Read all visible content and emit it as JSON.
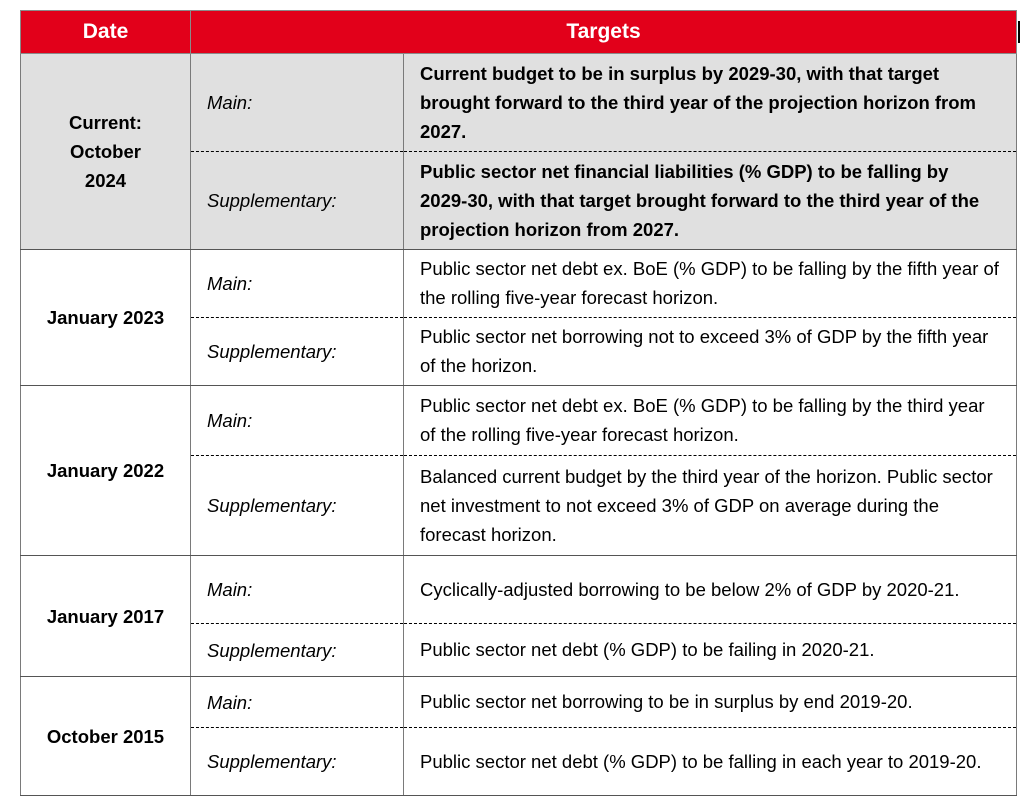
{
  "header": {
    "date": "Date",
    "targets": "Targets"
  },
  "rows": [
    {
      "date": "Current: October 2024",
      "main_label": "Main:",
      "main_text": "Current budget to be in surplus by 2029-30, with that target brought forward to the third year of the projection horizon from 2027.",
      "supp_label": "Supplementary:",
      "supp_text": "Public sector net financial liabilities (% GDP) to be falling by 2029-30, with that target brought forward to the third year of the projection horizon from 2027."
    },
    {
      "date": "January 2023",
      "main_label": "Main:",
      "main_text": "Public sector net debt ex. BoE (% GDP) to be falling by the fifth year of the rolling five-year forecast horizon.",
      "supp_label": "Supplementary:",
      "supp_text": "Public sector net borrowing not to exceed 3% of GDP by the fifth year of the horizon."
    },
    {
      "date": "January 2022",
      "main_label": "Main:",
      "main_text": "Public sector net debt ex. BoE (% GDP) to be falling by the third year of the rolling five-year forecast horizon.",
      "supp_label": "Supplementary:",
      "supp_text": "Balanced current budget by the third year of the horizon. Public sector net investment to not exceed 3% of GDP on average during the forecast horizon."
    },
    {
      "date": "January 2017",
      "main_label": "Main:",
      "main_text": "Cyclically-adjusted borrowing to be below 2% of GDP by 2020-21.",
      "supp_label": "Supplementary:",
      "supp_text": "Public sector net debt (% GDP) to be failing in 2020-21."
    },
    {
      "date": "October 2015",
      "main_label": "Main:",
      "main_text": "Public sector net borrowing to be in surplus by end 2019-20.",
      "supp_label": "Supplementary:",
      "supp_text": "Public sector net debt (% GDP) to be falling in each year to 2019-20."
    }
  ]
}
